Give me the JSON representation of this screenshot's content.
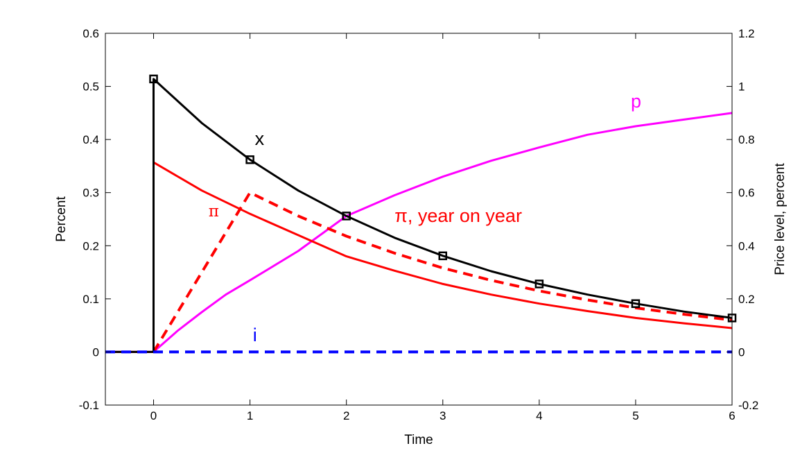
{
  "chart_data": {
    "type": "line",
    "xlabel": "Time",
    "ylabel_left": "Percent",
    "ylabel_right": "Price level, percent",
    "xlim": [
      -0.5,
      6
    ],
    "ylim_left": [
      -0.1,
      0.6
    ],
    "ylim_right": [
      -0.2,
      1.2
    ],
    "x_ticks": [
      "0",
      "1",
      "2",
      "3",
      "4",
      "5",
      "6"
    ],
    "y_ticks_left": [
      "-0.1",
      "0",
      "0.1",
      "0.2",
      "0.3",
      "0.4",
      "0.5",
      "0.6"
    ],
    "y_ticks_right": [
      "-0.2",
      "0",
      "0.2",
      "0.4",
      "0.6",
      "0.8",
      "1",
      "1.2"
    ],
    "grid": false,
    "colors": {
      "x": "#000000",
      "pi": "#ff0000",
      "pi_yoy": "#ff0000",
      "p": "#ff00ff",
      "i": "#0000ff"
    },
    "series": [
      {
        "name": "x",
        "label": "x",
        "axis": "left",
        "style": "solid",
        "points": [
          [
            -0.5,
            0
          ],
          [
            0,
            0
          ],
          [
            0,
            0.514
          ],
          [
            0.5,
            0.431
          ],
          [
            1,
            0.362
          ],
          [
            1.5,
            0.304
          ],
          [
            2,
            0.256
          ],
          [
            2.5,
            0.215
          ],
          [
            3,
            0.181
          ],
          [
            3.5,
            0.152
          ],
          [
            4,
            0.128
          ],
          [
            4.5,
            0.108
          ],
          [
            5,
            0.091
          ],
          [
            5.5,
            0.076
          ],
          [
            6,
            0.064
          ]
        ],
        "markers": [
          [
            0,
            0.514
          ],
          [
            1,
            0.362
          ],
          [
            2,
            0.256
          ],
          [
            3,
            0.181
          ],
          [
            4,
            0.128
          ],
          [
            5,
            0.091
          ],
          [
            6,
            0.064
          ]
        ]
      },
      {
        "name": "pi",
        "label": "π",
        "axis": "left",
        "style": "solid",
        "points": [
          [
            -0.5,
            0
          ],
          [
            0,
            0
          ],
          [
            0,
            0.357
          ],
          [
            0.5,
            0.304
          ],
          [
            1,
            0.26
          ],
          [
            1.5,
            0.22
          ],
          [
            2,
            0.18
          ],
          [
            2.5,
            0.153
          ],
          [
            3,
            0.128
          ],
          [
            3.5,
            0.108
          ],
          [
            4,
            0.091
          ],
          [
            4.5,
            0.077
          ],
          [
            5,
            0.064
          ],
          [
            5.5,
            0.054
          ],
          [
            6,
            0.045
          ]
        ]
      },
      {
        "name": "pi_yoy",
        "label": "π, year on year",
        "axis": "left",
        "style": "dashed",
        "points": [
          [
            0,
            0
          ],
          [
            0.25,
            0.075
          ],
          [
            0.5,
            0.15
          ],
          [
            0.75,
            0.225
          ],
          [
            1,
            0.3
          ],
          [
            1.5,
            0.256
          ],
          [
            2,
            0.218
          ],
          [
            2.5,
            0.186
          ],
          [
            3,
            0.158
          ],
          [
            3.5,
            0.135
          ],
          [
            4,
            0.115
          ],
          [
            4.5,
            0.098
          ],
          [
            5,
            0.083
          ],
          [
            5.5,
            0.071
          ],
          [
            6,
            0.06
          ]
        ]
      },
      {
        "name": "p",
        "label": "p",
        "axis": "right",
        "style": "solid",
        "points": [
          [
            -0.5,
            0
          ],
          [
            0,
            0
          ],
          [
            0.25,
            0.08
          ],
          [
            0.5,
            0.15
          ],
          [
            0.75,
            0.216
          ],
          [
            1,
            0.27
          ],
          [
            1.5,
            0.38
          ],
          [
            2,
            0.512
          ],
          [
            2.5,
            0.59
          ],
          [
            3,
            0.66
          ],
          [
            3.5,
            0.72
          ],
          [
            4,
            0.77
          ],
          [
            4.5,
            0.818
          ],
          [
            5,
            0.85
          ],
          [
            5.5,
            0.875
          ],
          [
            6,
            0.9
          ]
        ]
      },
      {
        "name": "i",
        "label": "i",
        "axis": "left",
        "style": "dashed",
        "points": [
          [
            -0.5,
            0
          ],
          [
            6,
            0
          ]
        ]
      }
    ],
    "annotations": [
      {
        "series": "x",
        "text": "x",
        "x": 1.05,
        "y": 0.39
      },
      {
        "series": "pi",
        "text": "π",
        "x": 0.57,
        "y": 0.255
      },
      {
        "series": "pi_yoy",
        "text": "π, year on year",
        "x": 2.5,
        "y": 0.245
      },
      {
        "series": "p",
        "text": "p",
        "x": 4.95,
        "y": 0.46
      },
      {
        "series": "i",
        "text": "i",
        "x": 1.03,
        "y": 0.02
      }
    ]
  }
}
